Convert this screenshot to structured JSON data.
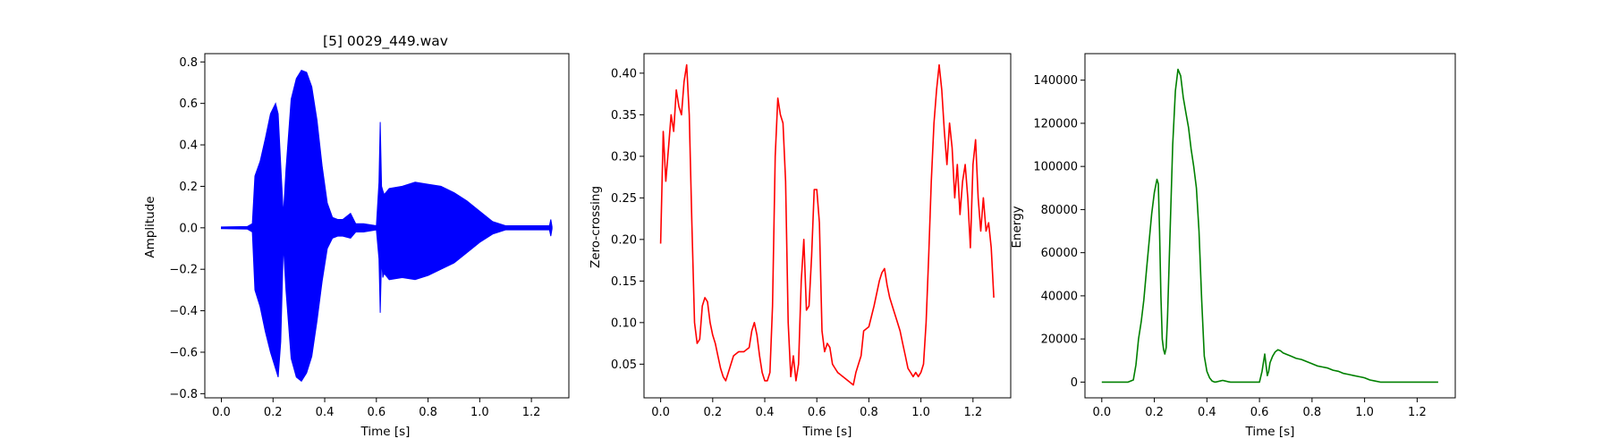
{
  "chart_data": [
    {
      "type": "line",
      "title": "[5] 0029_449.wav",
      "xlabel": "Time [s]",
      "ylabel": "Amplitude",
      "color": "#0000ff",
      "xlim": [
        -0.064,
        1.345
      ],
      "ylim": [
        -0.82,
        0.84
      ],
      "xticks": [
        0.0,
        0.2,
        0.4,
        0.6,
        0.8,
        1.0,
        1.2
      ],
      "xtick_labels": [
        "0.0",
        "0.2",
        "0.4",
        "0.6",
        "0.8",
        "1.0",
        "1.2"
      ],
      "yticks": [
        -0.8,
        -0.6,
        -0.4,
        -0.2,
        0.0,
        0.2,
        0.4,
        0.6,
        0.8
      ],
      "ytick_labels": [
        "−0.8",
        "−0.6",
        "−0.4",
        "−0.2",
        "0.0",
        "0.2",
        "0.4",
        "0.6",
        "0.8"
      ],
      "grid": false,
      "envelope": {
        "x": [
          0.0,
          0.1,
          0.12,
          0.13,
          0.15,
          0.17,
          0.19,
          0.21,
          0.22,
          0.23,
          0.24,
          0.25,
          0.27,
          0.29,
          0.31,
          0.33,
          0.35,
          0.37,
          0.39,
          0.41,
          0.43,
          0.45,
          0.47,
          0.5,
          0.52,
          0.55,
          0.6,
          0.61,
          0.615,
          0.62,
          0.625,
          0.63,
          0.65,
          0.7,
          0.75,
          0.8,
          0.85,
          0.9,
          0.95,
          1.0,
          1.05,
          1.1,
          1.2,
          1.27,
          1.275,
          1.28
        ],
        "upper": [
          0.004,
          0.006,
          0.02,
          0.25,
          0.32,
          0.43,
          0.55,
          0.6,
          0.55,
          0.3,
          0.06,
          0.28,
          0.62,
          0.72,
          0.76,
          0.75,
          0.68,
          0.52,
          0.3,
          0.12,
          0.05,
          0.04,
          0.04,
          0.07,
          0.02,
          0.02,
          0.01,
          0.22,
          0.51,
          0.2,
          0.18,
          0.16,
          0.19,
          0.2,
          0.22,
          0.21,
          0.2,
          0.17,
          0.13,
          0.08,
          0.03,
          0.01,
          0.01,
          0.01,
          0.04,
          0.005
        ],
        "lower": [
          -0.004,
          -0.006,
          -0.02,
          -0.3,
          -0.38,
          -0.5,
          -0.6,
          -0.68,
          -0.72,
          -0.55,
          -0.08,
          -0.3,
          -0.63,
          -0.72,
          -0.74,
          -0.7,
          -0.62,
          -0.45,
          -0.26,
          -0.1,
          -0.05,
          -0.04,
          -0.04,
          -0.05,
          -0.02,
          -0.02,
          -0.01,
          -0.15,
          -0.41,
          -0.15,
          -0.24,
          -0.22,
          -0.25,
          -0.24,
          -0.25,
          -0.23,
          -0.2,
          -0.17,
          -0.12,
          -0.07,
          -0.03,
          -0.01,
          -0.01,
          -0.01,
          -0.04,
          -0.005
        ]
      }
    },
    {
      "type": "line",
      "title": "",
      "xlabel": "Time [s]",
      "ylabel": "Zero-crossing",
      "color": "#ff0000",
      "xlim": [
        -0.064,
        1.345
      ],
      "ylim": [
        0.0095,
        0.4235
      ],
      "xticks": [
        0.0,
        0.2,
        0.4,
        0.6,
        0.8,
        1.0,
        1.2
      ],
      "xtick_labels": [
        "0.0",
        "0.2",
        "0.4",
        "0.6",
        "0.8",
        "1.0",
        "1.2"
      ],
      "yticks": [
        0.05,
        0.1,
        0.15,
        0.2,
        0.25,
        0.3,
        0.35,
        0.4
      ],
      "ytick_labels": [
        "0.05",
        "0.10",
        "0.15",
        "0.20",
        "0.25",
        "0.30",
        "0.35",
        "0.40"
      ],
      "grid": false,
      "x": [
        0.0,
        0.01,
        0.02,
        0.03,
        0.04,
        0.05,
        0.06,
        0.07,
        0.08,
        0.09,
        0.1,
        0.11,
        0.12,
        0.13,
        0.14,
        0.15,
        0.16,
        0.17,
        0.18,
        0.19,
        0.2,
        0.21,
        0.22,
        0.23,
        0.24,
        0.25,
        0.26,
        0.28,
        0.3,
        0.32,
        0.34,
        0.35,
        0.36,
        0.37,
        0.38,
        0.39,
        0.4,
        0.41,
        0.42,
        0.43,
        0.44,
        0.45,
        0.46,
        0.47,
        0.48,
        0.49,
        0.5,
        0.51,
        0.52,
        0.53,
        0.54,
        0.55,
        0.56,
        0.57,
        0.58,
        0.59,
        0.6,
        0.61,
        0.62,
        0.63,
        0.64,
        0.65,
        0.66,
        0.67,
        0.68,
        0.7,
        0.72,
        0.74,
        0.75,
        0.76,
        0.77,
        0.78,
        0.8,
        0.82,
        0.84,
        0.85,
        0.86,
        0.87,
        0.88,
        0.89,
        0.9,
        0.91,
        0.92,
        0.93,
        0.94,
        0.95,
        0.96,
        0.97,
        0.98,
        0.99,
        1.0,
        1.01,
        1.02,
        1.03,
        1.04,
        1.05,
        1.06,
        1.07,
        1.08,
        1.09,
        1.1,
        1.11,
        1.12,
        1.13,
        1.14,
        1.15,
        1.16,
        1.17,
        1.18,
        1.19,
        1.2,
        1.21,
        1.22,
        1.23,
        1.24,
        1.25,
        1.26,
        1.27,
        1.28
      ],
      "y": [
        0.195,
        0.33,
        0.27,
        0.31,
        0.35,
        0.33,
        0.38,
        0.36,
        0.35,
        0.39,
        0.41,
        0.35,
        0.22,
        0.1,
        0.075,
        0.08,
        0.12,
        0.13,
        0.125,
        0.1,
        0.085,
        0.075,
        0.06,
        0.045,
        0.035,
        0.03,
        0.04,
        0.06,
        0.065,
        0.065,
        0.07,
        0.09,
        0.1,
        0.085,
        0.06,
        0.04,
        0.03,
        0.03,
        0.04,
        0.12,
        0.3,
        0.37,
        0.35,
        0.34,
        0.27,
        0.1,
        0.035,
        0.06,
        0.03,
        0.05,
        0.15,
        0.2,
        0.115,
        0.12,
        0.18,
        0.26,
        0.26,
        0.22,
        0.09,
        0.065,
        0.075,
        0.07,
        0.05,
        0.045,
        0.04,
        0.035,
        0.03,
        0.025,
        0.04,
        0.05,
        0.06,
        0.09,
        0.095,
        0.12,
        0.15,
        0.16,
        0.165,
        0.145,
        0.13,
        0.12,
        0.11,
        0.1,
        0.09,
        0.075,
        0.06,
        0.045,
        0.04,
        0.035,
        0.04,
        0.035,
        0.04,
        0.05,
        0.1,
        0.18,
        0.27,
        0.34,
        0.38,
        0.41,
        0.38,
        0.33,
        0.29,
        0.34,
        0.31,
        0.25,
        0.29,
        0.23,
        0.27,
        0.29,
        0.25,
        0.19,
        0.29,
        0.32,
        0.25,
        0.21,
        0.25,
        0.21,
        0.22,
        0.19,
        0.13
      ]
    },
    {
      "type": "line",
      "title": "",
      "xlabel": "Time [s]",
      "ylabel": "Energy",
      "color": "#008000",
      "xlim": [
        -0.064,
        1.345
      ],
      "ylim": [
        -7300,
        152300
      ],
      "xticks": [
        0.0,
        0.2,
        0.4,
        0.6,
        0.8,
        1.0,
        1.2
      ],
      "xtick_labels": [
        "0.0",
        "0.2",
        "0.4",
        "0.6",
        "0.8",
        "1.0",
        "1.2"
      ],
      "yticks": [
        0,
        20000,
        40000,
        60000,
        80000,
        100000,
        120000,
        140000
      ],
      "ytick_labels": [
        "0",
        "20000",
        "40000",
        "60000",
        "80000",
        "100000",
        "120000",
        "140000"
      ],
      "grid": false,
      "x": [
        0.0,
        0.1,
        0.12,
        0.13,
        0.14,
        0.15,
        0.16,
        0.17,
        0.18,
        0.19,
        0.2,
        0.21,
        0.215,
        0.22,
        0.225,
        0.23,
        0.235,
        0.24,
        0.245,
        0.25,
        0.26,
        0.27,
        0.28,
        0.29,
        0.3,
        0.31,
        0.32,
        0.33,
        0.34,
        0.35,
        0.36,
        0.37,
        0.38,
        0.39,
        0.4,
        0.41,
        0.42,
        0.43,
        0.44,
        0.45,
        0.46,
        0.47,
        0.48,
        0.49,
        0.5,
        0.52,
        0.55,
        0.58,
        0.6,
        0.61,
        0.62,
        0.625,
        0.63,
        0.635,
        0.64,
        0.65,
        0.66,
        0.67,
        0.68,
        0.69,
        0.7,
        0.72,
        0.74,
        0.76,
        0.78,
        0.8,
        0.82,
        0.84,
        0.86,
        0.88,
        0.9,
        0.92,
        0.94,
        0.96,
        0.98,
        1.0,
        1.02,
        1.04,
        1.06,
        1.1,
        1.2,
        1.28
      ],
      "y": [
        0,
        0,
        1000,
        8000,
        20000,
        28000,
        38000,
        52000,
        65000,
        78000,
        88000,
        94000,
        92000,
        70000,
        40000,
        20000,
        15000,
        13000,
        16000,
        30000,
        70000,
        110000,
        135000,
        145000,
        142000,
        132000,
        125000,
        118000,
        108000,
        100000,
        90000,
        70000,
        38000,
        12000,
        5000,
        2000,
        500,
        0,
        200,
        500,
        800,
        500,
        200,
        0,
        0,
        0,
        0,
        0,
        0,
        5000,
        13000,
        8000,
        3000,
        5000,
        9000,
        12000,
        14000,
        15000,
        14500,
        13500,
        13000,
        12000,
        11000,
        10500,
        9500,
        8500,
        7500,
        7000,
        6500,
        5500,
        5000,
        4000,
        3500,
        3000,
        2500,
        2000,
        1000,
        500,
        0,
        0,
        0,
        0
      ]
    }
  ]
}
